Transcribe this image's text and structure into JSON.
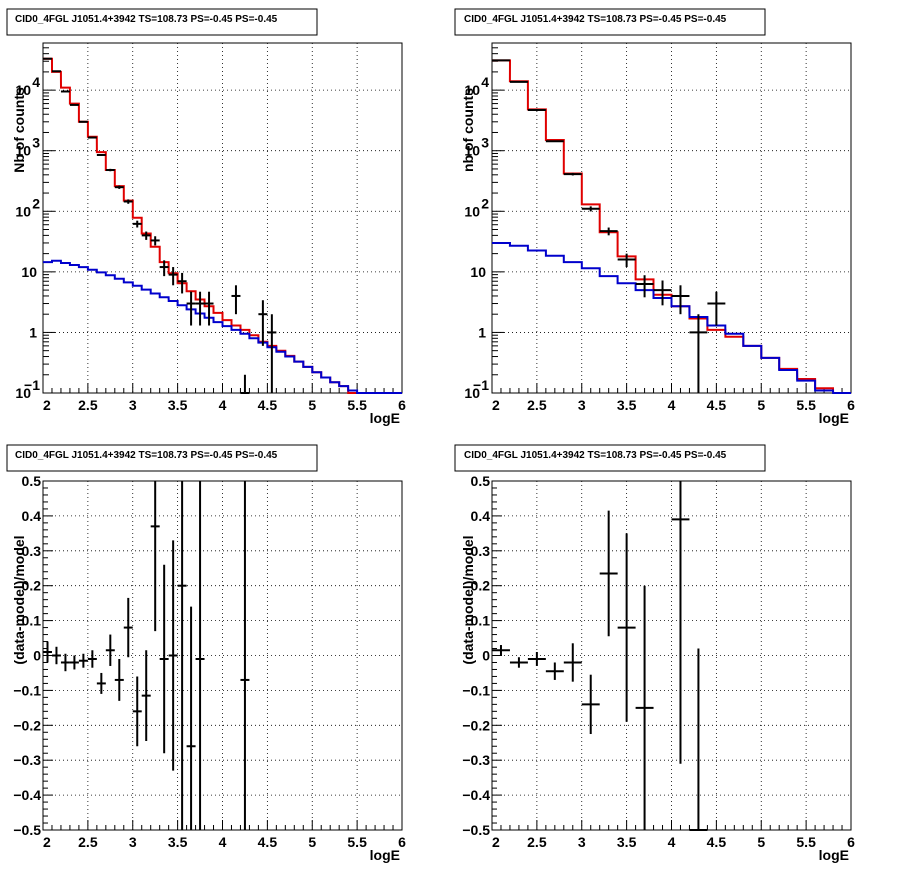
{
  "colors": {
    "data": "#000000",
    "total_model": "#e00000",
    "source_model": "#0000cc",
    "grid": "#000000"
  },
  "chart_data": [
    {
      "type": "line",
      "title": "CID0_4FGL J1051.4+3942 TS=108.73 PS=-0.45 PS=-0.45",
      "xlabel": "logE",
      "ylabel": "Nb of counts",
      "xlim": [
        2,
        6
      ],
      "ylim": [
        0.1,
        60000
      ],
      "yscale": "log",
      "grid": true,
      "x_ticks": [
        "2",
        "2.5",
        "3",
        "3.5",
        "4",
        "4.5",
        "5",
        "5.5",
        "6"
      ],
      "y_ticks": [
        {
          "v": 0.1,
          "t": "10"
        },
        {
          "v": 1,
          "t": "1"
        },
        {
          "v": 10,
          "t": "10"
        },
        {
          "v": 100,
          "t": "10"
        },
        {
          "v": 1000,
          "t": "10"
        },
        {
          "v": 10000,
          "t": "10"
        }
      ],
      "y_tick_exponents": [
        "−1",
        "",
        "",
        "2",
        "3",
        "4"
      ],
      "bin_width": 0.1,
      "series": [
        {
          "role": "total_model",
          "style": "step",
          "x": [
            2.05,
            2.15,
            2.25,
            2.35,
            2.45,
            2.55,
            2.65,
            2.75,
            2.85,
            2.95,
            3.05,
            3.15,
            3.25,
            3.35,
            3.45,
            3.55,
            3.65,
            3.75,
            3.85,
            3.95,
            4.05,
            4.15,
            4.25,
            4.35,
            4.45,
            4.55,
            4.65,
            4.75,
            4.85,
            4.95,
            5.05,
            5.15,
            5.25,
            5.35,
            5.45,
            5.55,
            5.65,
            5.75,
            5.85,
            5.95
          ],
          "values": [
            33000,
            20000,
            11000,
            6000,
            3000,
            1700,
            950,
            480,
            260,
            150,
            78,
            43,
            26,
            14.5,
            9.5,
            6.5,
            4.8,
            3.5,
            2.7,
            2.1,
            1.6,
            1.3,
            1.1,
            0.9,
            0.7,
            0.6,
            0.5,
            0.41,
            0.33,
            0.27,
            0.22,
            0.18,
            0.15,
            0.13,
            0.1,
            0.1,
            0.1,
            0.1,
            0.1,
            0.1
          ]
        },
        {
          "role": "source_model",
          "style": "step",
          "x": [
            2.05,
            2.15,
            2.25,
            2.35,
            2.45,
            2.55,
            2.65,
            2.75,
            2.85,
            2.95,
            3.05,
            3.15,
            3.25,
            3.35,
            3.45,
            3.55,
            3.65,
            3.75,
            3.85,
            3.95,
            4.05,
            4.15,
            4.25,
            4.35,
            4.45,
            4.55,
            4.65,
            4.75,
            4.85,
            4.95,
            5.05,
            5.15,
            5.25,
            5.35,
            5.45,
            5.55,
            5.65,
            5.75,
            5.85,
            5.95
          ],
          "values": [
            14.5,
            15.2,
            14,
            13,
            12,
            10.8,
            9.8,
            8.8,
            7.7,
            6.7,
            5.9,
            5.1,
            4.4,
            3.8,
            3.3,
            2.8,
            2.4,
            2.05,
            1.75,
            1.48,
            1.27,
            1.1,
            0.95,
            0.8,
            0.68,
            0.57,
            0.48,
            0.4,
            0.33,
            0.27,
            0.22,
            0.18,
            0.15,
            0.13,
            0.11,
            0.1,
            0.1,
            0.1,
            0.1,
            0.1
          ]
        },
        {
          "role": "data",
          "style": "errorbar",
          "x": [
            2.05,
            2.15,
            2.25,
            2.35,
            2.45,
            2.55,
            2.65,
            2.75,
            2.85,
            2.95,
            3.05,
            3.15,
            3.25,
            3.35,
            3.45,
            3.55,
            3.65,
            3.75,
            3.85,
            4.15,
            4.25,
            4.45,
            4.55
          ],
          "values": [
            33000,
            20500,
            9500,
            5700,
            3000,
            1650,
            850,
            480,
            250,
            145,
            62,
            40,
            33,
            12,
            9,
            7,
            3,
            3,
            3,
            4,
            0.1,
            2,
            1
          ],
          "err_lo": [
            180,
            140,
            100,
            75,
            55,
            40,
            29,
            22,
            16,
            12,
            8,
            6.3,
            5.7,
            3.5,
            3,
            2.6,
            1.7,
            1.7,
            1.7,
            2,
            0.1,
            1.4,
            0.95
          ],
          "err_hi": [
            180,
            140,
            100,
            75,
            55,
            40,
            29,
            22,
            16,
            12,
            8,
            6.3,
            5.7,
            3.5,
            3,
            2.6,
            1.7,
            1.7,
            1.7,
            2,
            0.1,
            1.4,
            1
          ]
        }
      ]
    },
    {
      "type": "line",
      "title": "CID0_4FGL J1051.4+3942 TS=108.73 PS=-0.45 PS=-0.45",
      "xlabel": "logE",
      "ylabel": "nb of counts",
      "xlim": [
        2,
        6
      ],
      "ylim": [
        0.1,
        60000
      ],
      "yscale": "log",
      "grid": true,
      "x_ticks": [
        "2",
        "2.5",
        "3",
        "3.5",
        "4",
        "4.5",
        "5",
        "5.5",
        "6"
      ],
      "y_ticks": [
        {
          "v": 0.1,
          "t": "10"
        },
        {
          "v": 1,
          "t": "1"
        },
        {
          "v": 10,
          "t": "10"
        },
        {
          "v": 100,
          "t": "10"
        },
        {
          "v": 1000,
          "t": "10"
        },
        {
          "v": 10000,
          "t": "10"
        }
      ],
      "y_tick_exponents": [
        "−1",
        "",
        "",
        "2",
        "3",
        "4"
      ],
      "bin_width": 0.2,
      "series": [
        {
          "role": "total_model",
          "style": "step",
          "x": [
            2.1,
            2.3,
            2.5,
            2.7,
            2.9,
            3.1,
            3.3,
            3.5,
            3.7,
            3.9,
            4.1,
            4.3,
            4.5,
            4.7,
            4.9,
            5.1,
            5.3,
            5.5,
            5.7,
            5.9
          ],
          "values": [
            31000,
            14000,
            4800,
            1500,
            420,
            130,
            45,
            18,
            7.5,
            4.2,
            2.7,
            1.7,
            1.1,
            0.85,
            0.6,
            0.38,
            0.25,
            0.17,
            0.12,
            0.1
          ]
        },
        {
          "role": "source_model",
          "style": "step",
          "x": [
            2.1,
            2.3,
            2.5,
            2.7,
            2.9,
            3.1,
            3.3,
            3.5,
            3.7,
            3.9,
            4.1,
            4.3,
            4.5,
            4.7,
            4.9,
            5.1,
            5.3,
            5.5,
            5.7,
            5.9
          ],
          "values": [
            30,
            27,
            22.5,
            18.5,
            14.5,
            11.5,
            8.5,
            6.5,
            5,
            3.7,
            2.7,
            1.8,
            1.3,
            0.95,
            0.6,
            0.38,
            0.24,
            0.16,
            0.11,
            0.1
          ]
        },
        {
          "role": "data",
          "style": "errorbar",
          "x": [
            2.1,
            2.3,
            2.5,
            2.7,
            2.9,
            3.1,
            3.3,
            3.5,
            3.7,
            3.9,
            4.1,
            4.3,
            4.5
          ],
          "values": [
            31000,
            13700,
            4700,
            1430,
            410,
            110,
            47,
            16,
            6.3,
            5,
            4,
            1,
            3
          ],
          "err_lo": [
            176,
            117,
            69,
            38,
            20,
            10.5,
            6.9,
            4,
            2.5,
            2.2,
            2,
            0.9,
            1.7
          ],
          "err_hi": [
            176,
            117,
            69,
            38,
            20,
            10.5,
            6.9,
            4,
            2.5,
            2.2,
            2,
            1,
            1.7
          ]
        }
      ]
    },
    {
      "type": "scatter",
      "title": "CID0_4FGL J1051.4+3942 TS=108.73 PS=-0.45 PS=-0.45",
      "xlabel": "logE",
      "ylabel": "(data-model)/model",
      "xlim": [
        2,
        6
      ],
      "ylim": [
        -0.5,
        0.5
      ],
      "grid": true,
      "x_ticks": [
        "2",
        "2.5",
        "3",
        "3.5",
        "4",
        "4.5",
        "5",
        "5.5",
        "6"
      ],
      "y_ticks": [
        "−0.5",
        "−0.4",
        "−0.3",
        "−0.2",
        "−0.1",
        "0",
        "0.1",
        "0.2",
        "0.3",
        "0.4",
        "0.5"
      ],
      "bin_width": 0.1,
      "series": [
        {
          "role": "data",
          "style": "errorbar",
          "x": [
            2.05,
            2.15,
            2.25,
            2.35,
            2.45,
            2.55,
            2.65,
            2.75,
            2.85,
            2.95,
            3.05,
            3.15,
            3.25,
            3.35,
            3.45,
            3.55,
            3.65,
            3.75,
            4.25
          ],
          "values": [
            0.01,
            0.0,
            -0.02,
            -0.02,
            -0.015,
            -0.01,
            -0.08,
            0.015,
            -0.07,
            0.08,
            -0.16,
            -0.115,
            0.37,
            -0.01,
            0.0,
            0.2,
            -0.26,
            -0.01,
            -0.07
          ],
          "err_lo": [
            0.03,
            0.025,
            0.025,
            0.02,
            0.02,
            0.025,
            0.03,
            0.045,
            0.06,
            0.085,
            0.1,
            0.13,
            0.3,
            0.27,
            0.33,
            0.7,
            0.4,
            0.6,
            0.6
          ],
          "err_hi": [
            0.03,
            0.025,
            0.025,
            0.02,
            0.02,
            0.025,
            0.03,
            0.045,
            0.06,
            0.085,
            0.1,
            0.13,
            0.3,
            0.27,
            0.33,
            0.7,
            0.4,
            0.6,
            0.6
          ]
        }
      ]
    },
    {
      "type": "scatter",
      "title": "CID0_4FGL J1051.4+3942 TS=108.73 PS=-0.45 PS=-0.45",
      "xlabel": "logE",
      "ylabel": "(data-model)/model",
      "xlim": [
        2,
        6
      ],
      "ylim": [
        -0.5,
        0.5
      ],
      "grid": true,
      "x_ticks": [
        "2",
        "2.5",
        "3",
        "3.5",
        "4",
        "4.5",
        "5",
        "5.5",
        "6"
      ],
      "y_ticks": [
        "−0.5",
        "−0.4",
        "−0.3",
        "−0.2",
        "−0.1",
        "0",
        "0.1",
        "0.2",
        "0.3",
        "0.4",
        "0.5"
      ],
      "bin_width": 0.2,
      "series": [
        {
          "role": "data",
          "style": "errorbar",
          "x": [
            2.1,
            2.3,
            2.5,
            2.7,
            2.9,
            3.1,
            3.3,
            3.5,
            3.7,
            4.1,
            4.3
          ],
          "values": [
            0.015,
            -0.02,
            -0.01,
            -0.045,
            -0.02,
            -0.14,
            0.235,
            0.08,
            -0.15,
            0.39,
            -0.5
          ],
          "err_lo": [
            0.015,
            0.015,
            0.02,
            0.025,
            0.055,
            0.085,
            0.18,
            0.27,
            0.35,
            0.7,
            0.52
          ],
          "err_hi": [
            0.015,
            0.015,
            0.02,
            0.025,
            0.055,
            0.085,
            0.18,
            0.27,
            0.35,
            0.7,
            0.52
          ]
        }
      ]
    }
  ]
}
